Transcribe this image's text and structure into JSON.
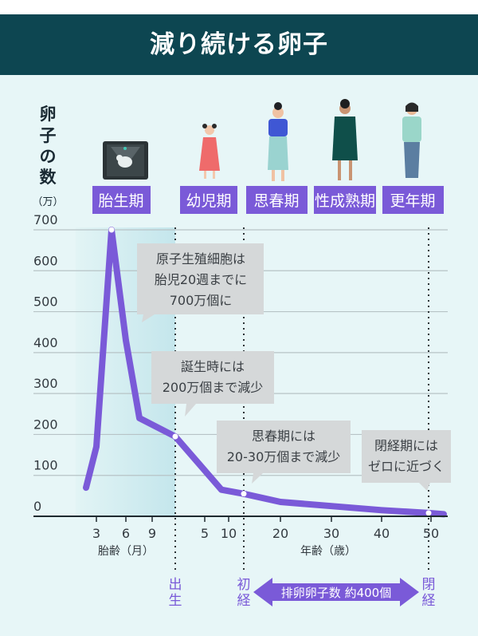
{
  "title": "減り続ける卵子",
  "colors": {
    "header_bg": "#0d4651",
    "background": "#e7f6f7",
    "accent": "#7a5ad8",
    "callout_bg": "#d5d8d9",
    "axis_text": "#333a40"
  },
  "y_axis": {
    "label_line1": "卵",
    "label_line2": "子",
    "label_line3": "の",
    "label_line4": "数",
    "unit": "（万）",
    "ticks": [
      "0",
      "100",
      "200",
      "300",
      "400",
      "500",
      "600",
      "700"
    ]
  },
  "stages": [
    "胎生期",
    "幼児期",
    "思春期",
    "性成熟期",
    "更年期"
  ],
  "x_axis": {
    "fetal_ticks": [
      "3",
      "6",
      "9"
    ],
    "fetal_label": "胎齢（月）",
    "age_ticks": [
      "5",
      "10",
      "20",
      "30",
      "40",
      "50"
    ],
    "age_label": "年齢（歳）"
  },
  "events": {
    "birth": "出生",
    "menarche": "初経",
    "menopause": "閉経"
  },
  "ovulation_arrow": "排卵卵子数 約400個",
  "callouts": {
    "c1": [
      "原子生殖細胞は",
      "胎児20週までに",
      "700万個に"
    ],
    "c2": [
      "誕生時には",
      "200万個まで減少"
    ],
    "c3": [
      "思春期には",
      "20-30万個まで減少"
    ],
    "c4": [
      "閉経期には",
      "ゼロに近づく"
    ]
  },
  "chart_data": {
    "type": "line",
    "title": "減り続ける卵子",
    "xlabel": "胎齢（月） / 年齢（歳）",
    "ylabel": "卵子の数（万）",
    "ylim": [
      0,
      700
    ],
    "series": [
      {
        "points": [
          {
            "x": "胎齢 2.5月",
            "y": 70
          },
          {
            "x": "胎齢 3月",
            "y": 170
          },
          {
            "x": "胎齢 4.5月",
            "y": 700
          },
          {
            "x": "胎齢 6月",
            "y": 430
          },
          {
            "x": "胎齢 7.5月",
            "y": 240
          },
          {
            "x": "出生",
            "y": 195
          },
          {
            "x": "5歳",
            "y": 65
          },
          {
            "x": "初経",
            "y": 55
          },
          {
            "x": "20歳",
            "y": 35
          },
          {
            "x": "30歳",
            "y": 25
          },
          {
            "x": "40歳",
            "y": 15
          },
          {
            "x": "50歳",
            "y": 8
          },
          {
            "x": "53歳",
            "y": 5
          }
        ]
      }
    ]
  }
}
